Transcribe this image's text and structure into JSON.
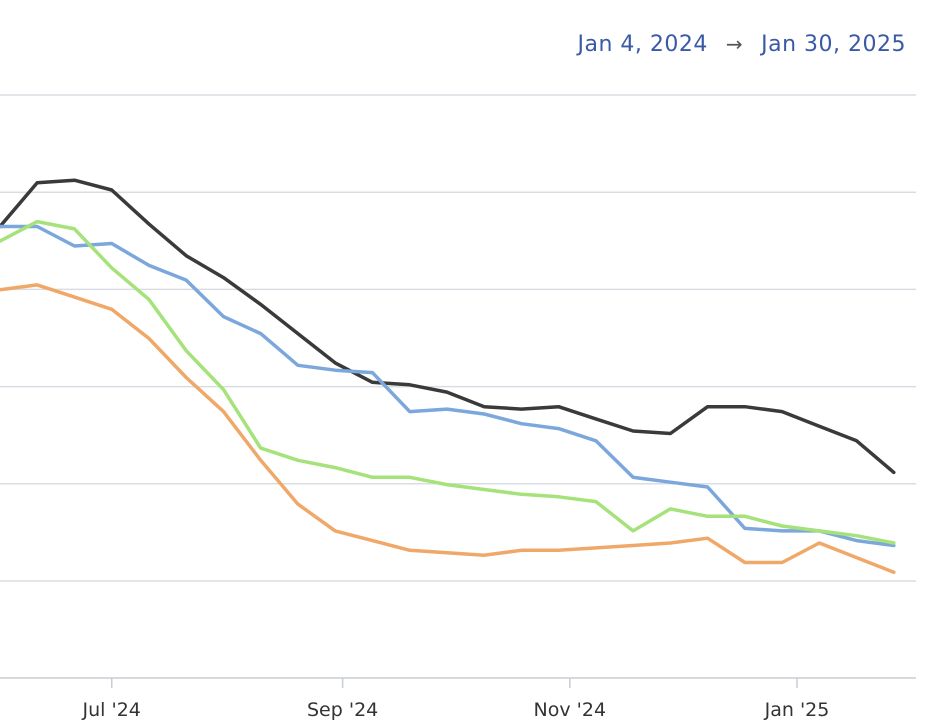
{
  "header": {
    "start_date": "Jan 4, 2024",
    "arrow": "→",
    "end_date": "Jan 30, 2025"
  },
  "chart_data": {
    "type": "line",
    "title": "",
    "xlabel": "",
    "ylabel": "",
    "x_tick_labels": [
      "Jul '24",
      "Sep '24",
      "Nov '24",
      "Jan '25"
    ],
    "x_tick_dates": [
      "2024-07-01",
      "2024-09-01",
      "2024-11-01",
      "2025-01-01"
    ],
    "x_range": [
      "2024-06-01",
      "2025-01-30"
    ],
    "y_gridlines": 6,
    "grid": "horizontal",
    "series": [
      {
        "color": "#3a3a3a",
        "x": [
          "2024-06-01",
          "2024-06-11",
          "2024-06-21",
          "2024-07-01",
          "2024-07-11",
          "2024-07-21",
          "2024-07-31",
          "2024-08-10",
          "2024-08-20",
          "2024-08-30",
          "2024-09-09",
          "2024-09-19",
          "2024-09-29",
          "2024-10-09",
          "2024-10-19",
          "2024-10-29",
          "2024-11-08",
          "2024-11-18",
          "2024-11-28",
          "2024-12-08",
          "2024-12-18",
          "2024-12-28",
          "2025-01-07",
          "2025-01-17",
          "2025-01-27"
        ],
        "y": [
          73,
          82,
          82.5,
          80.5,
          73.5,
          67,
          62.5,
          57,
          51,
          45,
          41,
          40.5,
          39,
          36,
          35.5,
          36,
          33.5,
          31,
          30.5,
          36,
          36,
          35,
          32,
          29,
          22.5
        ]
      },
      {
        "color": "#7ba7dc",
        "x": [
          "2024-06-01",
          "2024-06-11",
          "2024-06-21",
          "2024-07-01",
          "2024-07-11",
          "2024-07-21",
          "2024-07-31",
          "2024-08-10",
          "2024-08-20",
          "2024-08-30",
          "2024-09-09",
          "2024-09-19",
          "2024-09-29",
          "2024-10-09",
          "2024-10-19",
          "2024-10-29",
          "2024-11-08",
          "2024-11-18",
          "2024-11-28",
          "2024-12-08",
          "2024-12-18",
          "2024-12-28",
          "2025-01-07",
          "2025-01-17",
          "2025-01-27"
        ],
        "y": [
          73,
          73,
          69,
          69.5,
          65,
          62,
          54.5,
          51,
          44.5,
          43.5,
          43,
          35,
          35.5,
          34.5,
          32.5,
          31.5,
          29,
          21.5,
          20.5,
          19.5,
          11,
          10.5,
          10.5,
          8.5,
          7.5
        ]
      },
      {
        "color": "#a5e27a",
        "x": [
          "2024-06-01",
          "2024-06-11",
          "2024-06-21",
          "2024-07-01",
          "2024-07-11",
          "2024-07-21",
          "2024-07-31",
          "2024-08-10",
          "2024-08-20",
          "2024-08-30",
          "2024-09-09",
          "2024-09-19",
          "2024-09-29",
          "2024-10-09",
          "2024-10-19",
          "2024-10-29",
          "2024-11-08",
          "2024-11-18",
          "2024-11-28",
          "2024-12-08",
          "2024-12-18",
          "2024-12-28",
          "2025-01-07",
          "2025-01-17",
          "2025-01-27"
        ],
        "y": [
          70,
          74,
          72.5,
          64.5,
          58,
          47.5,
          39.5,
          27.5,
          25,
          23.5,
          21.5,
          21.5,
          20,
          19,
          18,
          17.5,
          16.5,
          10.5,
          15,
          13.5,
          13.5,
          11.5,
          10.5,
          9.5,
          8
        ]
      },
      {
        "color": "#f0a868",
        "x": [
          "2024-06-01",
          "2024-06-11",
          "2024-06-21",
          "2024-07-01",
          "2024-07-11",
          "2024-07-21",
          "2024-07-31",
          "2024-08-10",
          "2024-08-20",
          "2024-08-30",
          "2024-09-09",
          "2024-09-19",
          "2024-09-29",
          "2024-10-09",
          "2024-10-19",
          "2024-10-29",
          "2024-11-08",
          "2024-11-18",
          "2024-11-28",
          "2024-12-08",
          "2024-12-18",
          "2024-12-28",
          "2025-01-07",
          "2025-01-17",
          "2025-01-27"
        ],
        "y": [
          60,
          61,
          58.5,
          56,
          50,
          42,
          35,
          25,
          16,
          10.5,
          8.5,
          6.5,
          6,
          5.5,
          6.5,
          6.5,
          7,
          7.5,
          8,
          9,
          4,
          4,
          8,
          5,
          2
        ]
      }
    ]
  }
}
